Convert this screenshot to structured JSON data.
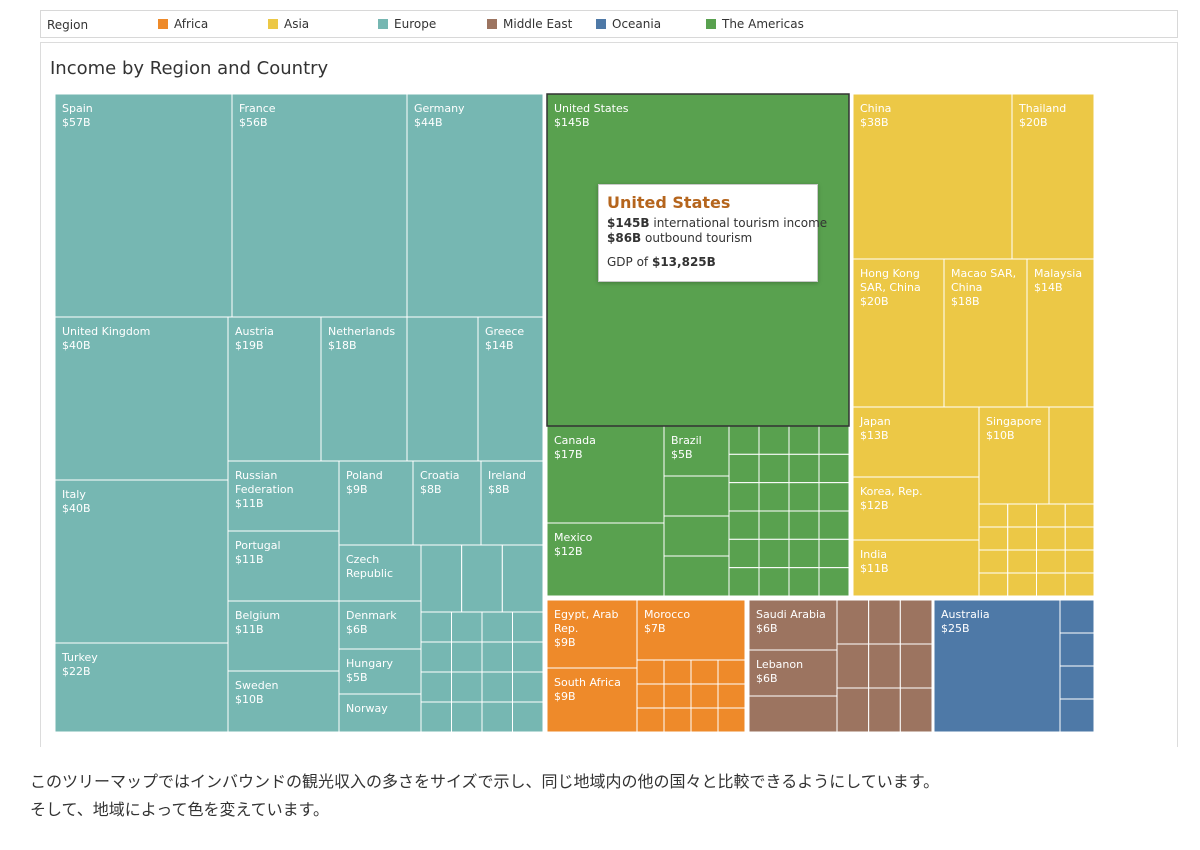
{
  "legend": {
    "title": "Region",
    "items": [
      {
        "label": "Africa",
        "color": "#EE8A2A"
      },
      {
        "label": "Asia",
        "color": "#ECC846"
      },
      {
        "label": "Europe",
        "color": "#76B7B2"
      },
      {
        "label": "Middle East",
        "color": "#9C7460"
      },
      {
        "label": "Oceania",
        "color": "#4E79A7"
      },
      {
        "label": "The Americas",
        "color": "#59A14F"
      }
    ]
  },
  "chart_data": {
    "type": "treemap",
    "title": "Income by Region and Country",
    "unit": "international tourism income (USD billions)",
    "regions": [
      {
        "name": "Europe",
        "countries": [
          {
            "name": "Spain",
            "value": 57,
            "label": "$57B"
          },
          {
            "name": "France",
            "value": 56,
            "label": "$56B"
          },
          {
            "name": "Germany",
            "value": 44,
            "label": "$44B"
          },
          {
            "name": "United Kingdom",
            "value": 40,
            "label": "$40B"
          },
          {
            "name": "Italy",
            "value": 40,
            "label": "$40B"
          },
          {
            "name": "Turkey",
            "value": 22,
            "label": "$22B"
          },
          {
            "name": "Austria",
            "value": 19,
            "label": "$19B"
          },
          {
            "name": "Netherlands",
            "value": 18,
            "label": "$18B"
          },
          {
            "name": "Greece",
            "value": 14,
            "label": "$14B"
          },
          {
            "name": "Russian Federation",
            "value": 11,
            "label": "$11B"
          },
          {
            "name": "Portugal",
            "value": 11,
            "label": "$11B"
          },
          {
            "name": "Belgium",
            "value": 11,
            "label": "$11B"
          },
          {
            "name": "Sweden",
            "value": 10,
            "label": "$10B"
          },
          {
            "name": "Poland",
            "value": 9,
            "label": "$9B"
          },
          {
            "name": "Croatia",
            "value": 8,
            "label": "$8B"
          },
          {
            "name": "Ireland",
            "value": 8,
            "label": "$8B"
          },
          {
            "name": "Czech Republic",
            "value": 7,
            "label": ""
          },
          {
            "name": "Denmark",
            "value": 6,
            "label": "$6B"
          },
          {
            "name": "Hungary",
            "value": 5,
            "label": "$5B"
          },
          {
            "name": "Norway",
            "value": 5,
            "label": ""
          }
        ]
      },
      {
        "name": "The Americas",
        "countries": [
          {
            "name": "United States",
            "value": 145,
            "label": "$145B"
          },
          {
            "name": "Canada",
            "value": 17,
            "label": "$17B"
          },
          {
            "name": "Brazil",
            "value": 5,
            "label": "$5B"
          },
          {
            "name": "Mexico",
            "value": 12,
            "label": "$12B"
          }
        ]
      },
      {
        "name": "Asia",
        "countries": [
          {
            "name": "China",
            "value": 38,
            "label": "$38B"
          },
          {
            "name": "Thailand",
            "value": 20,
            "label": "$20B"
          },
          {
            "name": "Hong Kong SAR, China",
            "value": 20,
            "label": "$20B"
          },
          {
            "name": "Macao SAR, China",
            "value": 18,
            "label": "$18B"
          },
          {
            "name": "Malaysia",
            "value": 14,
            "label": "$14B"
          },
          {
            "name": "Japan",
            "value": 13,
            "label": "$13B"
          },
          {
            "name": "Singapore",
            "value": 10,
            "label": "$10B"
          },
          {
            "name": "Korea, Rep.",
            "value": 12,
            "label": "$12B"
          },
          {
            "name": "India",
            "value": 11,
            "label": "$11B"
          }
        ]
      },
      {
        "name": "Africa",
        "countries": [
          {
            "name": "Egypt, Arab Rep.",
            "value": 9,
            "label": "$9B"
          },
          {
            "name": "Morocco",
            "value": 7,
            "label": "$7B"
          },
          {
            "name": "South Africa",
            "value": 9,
            "label": "$9B"
          }
        ]
      },
      {
        "name": "Middle East",
        "countries": [
          {
            "name": "Saudi Arabia",
            "value": 6,
            "label": "$6B"
          },
          {
            "name": "Lebanon",
            "value": 6,
            "label": "$6B"
          }
        ]
      },
      {
        "name": "Oceania",
        "countries": [
          {
            "name": "Australia",
            "value": 25,
            "label": "$25B"
          }
        ]
      }
    ]
  },
  "tooltip": {
    "title": "United States",
    "income_value": "$145B",
    "income_text": " international tourism income",
    "outbound_value": "$86B",
    "outbound_text": " outbound tourism",
    "gdp_prefix": "GDP of ",
    "gdp_value": "$13,825B"
  },
  "caption": {
    "line1": "このツリーマップではインバウンドの観光収入の多さをサイズで示し、同じ地域内の他の国々と比較できるようにしています。",
    "line2": "そして、地域によって色を変えています。"
  }
}
